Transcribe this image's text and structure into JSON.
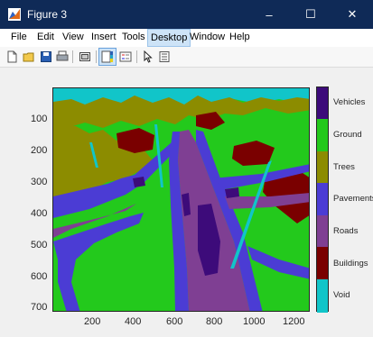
{
  "window": {
    "title": "Figure 3",
    "buttons": [
      "–",
      "☐",
      "✕"
    ]
  },
  "menu": [
    "File",
    "Edit",
    "View",
    "Insert",
    "Tools",
    "Desktop",
    "Window",
    "Help"
  ],
  "menu_active": "Desktop",
  "toolbar_icons": [
    "new-figure-icon",
    "open-file-icon",
    "save-icon",
    "print-icon",
    "link-plot-icon",
    "colorbar-icon",
    "legend-icon",
    "pointer-icon",
    "property-inspector-icon"
  ],
  "axes": {
    "y_ticks": [
      "100",
      "200",
      "300",
      "400",
      "500",
      "600",
      "700"
    ],
    "x_ticks": [
      "200",
      "400",
      "600",
      "800",
      "1000",
      "1200"
    ]
  },
  "colorbar": {
    "labels": [
      "Vehicles",
      "Ground",
      "Trees",
      "Pavements",
      "Roads",
      "Buildings",
      "Void"
    ],
    "colors": [
      "#3d0b7a",
      "#23c91c",
      "#8c8c00",
      "#4b3cd4",
      "#7f3f93",
      "#7a0000",
      "#11c5c9"
    ]
  },
  "palette": {
    "title_bar": "#0f2a57",
    "ground": "#23c91c",
    "void": "#11c5c9",
    "trees": "#8c8c00",
    "roads": "#7f3f93",
    "pavements": "#4b3cd4",
    "buildings": "#7a0000",
    "vehicles": "#3d0b7a"
  }
}
